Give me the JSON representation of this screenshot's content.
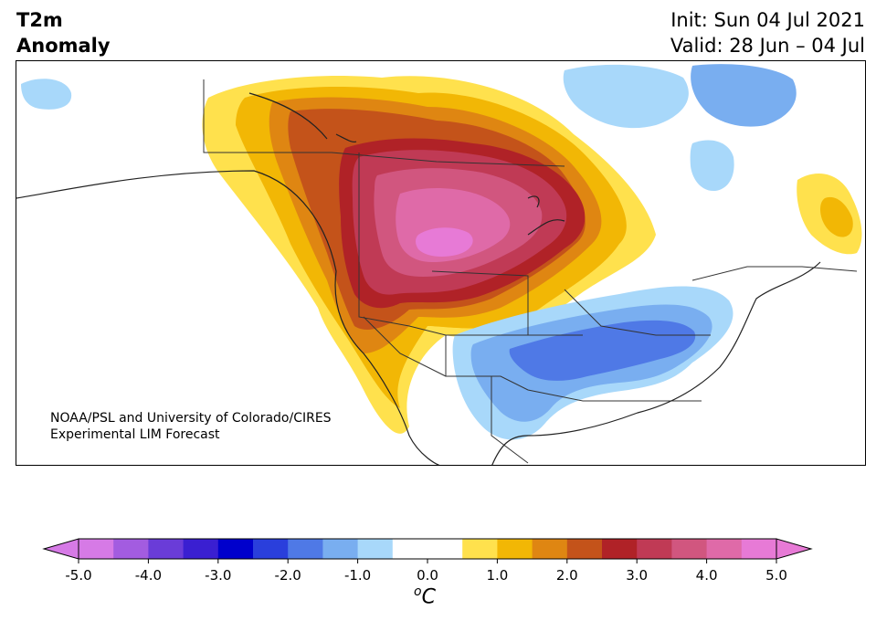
{
  "header": {
    "title_line1": "T2m",
    "title_line2": "Anomaly",
    "init": "Init: Sun 04 Jul 2021",
    "valid": "Valid: 28 Jun – 04 Jul"
  },
  "credit": {
    "line1": "NOAA/PSL and University of Colorado/CIRES",
    "line2": "Experimental LIM Forecast"
  },
  "colorbar": {
    "ticks": [
      "-5.0",
      "-4.0",
      "-3.0",
      "-2.0",
      "-1.0",
      "0.0",
      "1.0",
      "2.0",
      "3.0",
      "4.0",
      "5.0"
    ],
    "units_base": "C",
    "units_sup": "o",
    "colors": [
      "#d67ae6",
      "#a35ce0",
      "#6a3cd8",
      "#3a1fd1",
      "#0000cc",
      "#2a3fdc",
      "#4f79e6",
      "#79aef0",
      "#a8d8fa",
      "#ffffff",
      "#ffffff",
      "#ffe14d",
      "#f2b705",
      "#df8612",
      "#c4531a",
      "#b02227",
      "#c03a55",
      "#d1567f",
      "#df6aa8",
      "#e77ad6"
    ],
    "extend_min_color": "#d67ae6",
    "extend_max_color": "#e77ad6"
  }
}
